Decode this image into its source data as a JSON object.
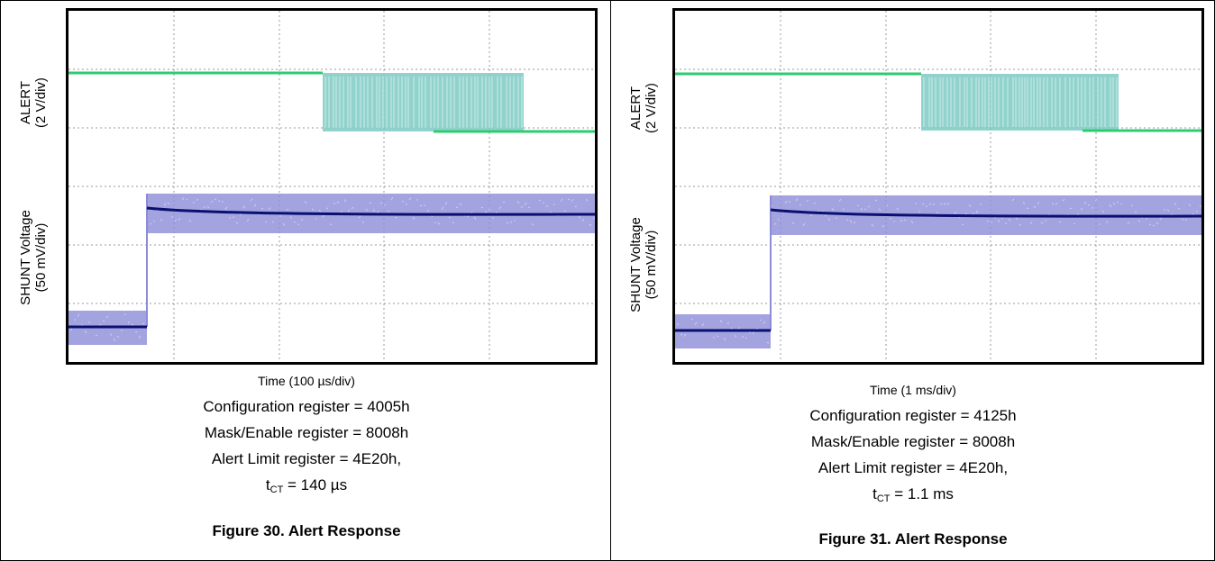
{
  "figures": [
    {
      "alert_axis": "ALERT",
      "alert_scale": "(2 V/div)",
      "shunt_axis": "SHUNT Voltage",
      "shunt_scale": "(50 mV/div)",
      "time_label": "Time (100 µs/div)",
      "config": "Configuration register = 4005h",
      "mask": "Mask/Enable register = 8008h",
      "alert_limit": "Alert Limit register = 4E20h,",
      "tct_prefix": "t",
      "tct_sub": "CT",
      "tct_value": " = 140 µs",
      "caption": "Figure 30. Alert Response"
    },
    {
      "alert_axis": "ALERT",
      "alert_scale": "(2 V/div)",
      "shunt_axis": "SHUNT Voltage",
      "shunt_scale": "(50 mV/div)",
      "time_label": "Time (1 ms/div)",
      "config": "Configuration register = 4125h",
      "mask": "Mask/Enable register = 8008h",
      "alert_limit": "Alert Limit register = 4E20h,",
      "tct_prefix": "t",
      "tct_sub": "CT",
      "tct_value": " = 1.1 ms",
      "caption": "Figure 31. Alert Response"
    }
  ],
  "colors": {
    "alert_trace": "#2ecc71",
    "alert_band": "#7ecbc3",
    "shunt_band": "#8c8cd8",
    "shunt_mean": "#0a1070",
    "grid": "#9a9a9a"
  }
}
